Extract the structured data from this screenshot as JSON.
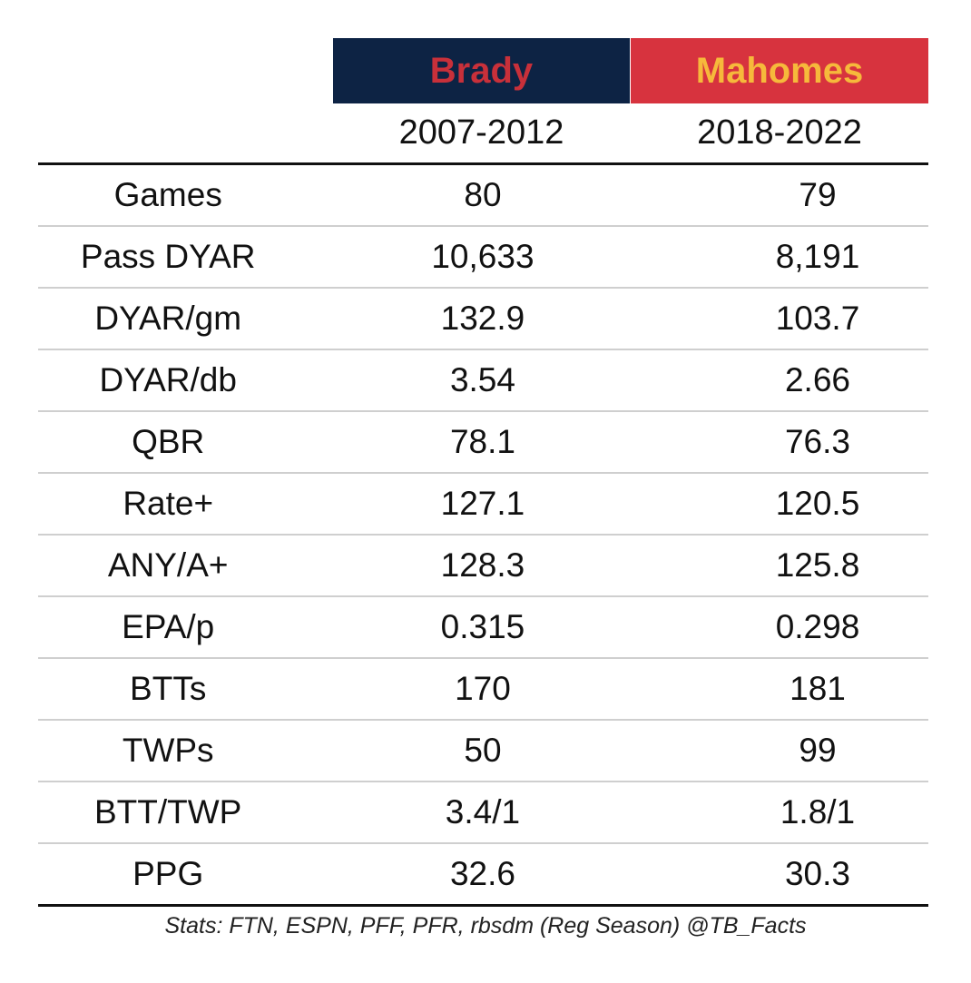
{
  "colors": {
    "brady_bg": "#0d2344",
    "brady_text": "#c8303a",
    "mahomes_bg": "#d7333e",
    "mahomes_text": "#f6b93b"
  },
  "chart_data": {
    "type": "table",
    "columns": [
      {
        "name": "Brady",
        "years": "2007-2012"
      },
      {
        "name": "Mahomes",
        "years": "2018-2022"
      }
    ],
    "rows": [
      {
        "label": "Games",
        "brady": "80",
        "mahomes": "79"
      },
      {
        "label": "Pass DYAR",
        "brady": "10,633",
        "mahomes": "8,191"
      },
      {
        "label": "DYAR/gm",
        "brady": "132.9",
        "mahomes": "103.7"
      },
      {
        "label": "DYAR/db",
        "brady": "3.54",
        "mahomes": "2.66"
      },
      {
        "label": "QBR",
        "brady": "78.1",
        "mahomes": "76.3"
      },
      {
        "label": "Rate+",
        "brady": "127.1",
        "mahomes": "120.5"
      },
      {
        "label": "ANY/A+",
        "brady": "128.3",
        "mahomes": "125.8"
      },
      {
        "label": "EPA/p",
        "brady": "0.315",
        "mahomes": "0.298"
      },
      {
        "label": "BTTs",
        "brady": "170",
        "mahomes": "181"
      },
      {
        "label": "TWPs",
        "brady": "50",
        "mahomes": "99"
      },
      {
        "label": "BTT/TWP",
        "brady": "3.4/1",
        "mahomes": "1.8/1"
      },
      {
        "label": "PPG",
        "brady": "32.6",
        "mahomes": "30.3"
      }
    ],
    "source": "Stats: FTN, ESPN, PFF, PFR, rbsdm (Reg Season) @TB_Facts"
  }
}
